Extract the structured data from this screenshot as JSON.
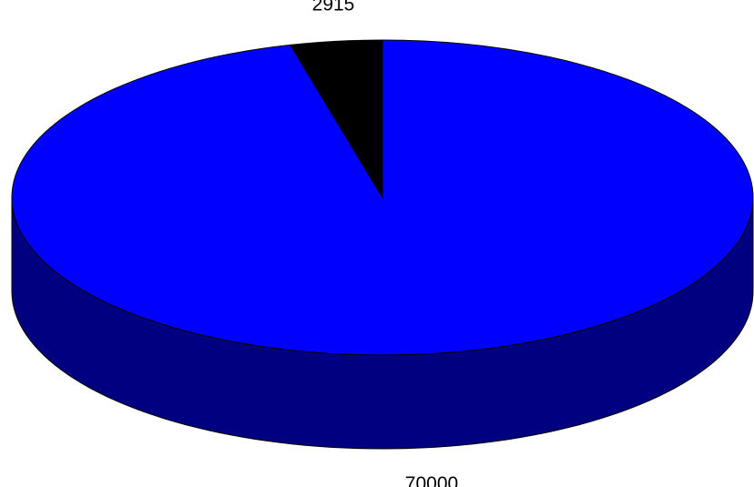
{
  "chart_data": {
    "type": "pie",
    "style": "3d",
    "title": "",
    "start_angle_deg": 90,
    "direction": "clockwise",
    "slices": [
      {
        "label": "70000",
        "value": 70000,
        "color": "#0000ff",
        "side_color": "#000080"
      },
      {
        "label": "2915",
        "value": 2915,
        "color": "#000000",
        "side_color": "#000000"
      }
    ]
  }
}
